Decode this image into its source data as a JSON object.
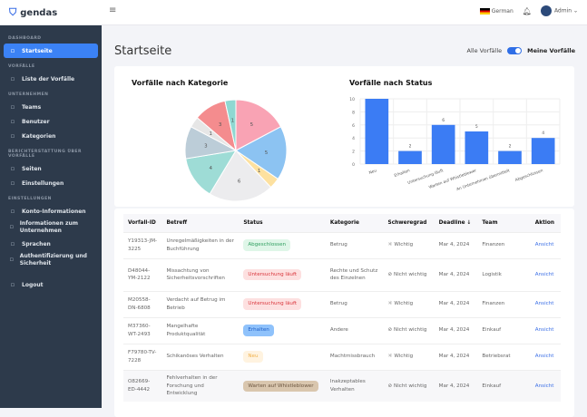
{
  "app": {
    "name": "gendas"
  },
  "header": {
    "language": "German",
    "user": "Admin"
  },
  "sidebar": {
    "sections": [
      {
        "title": "DASHBOARD",
        "items": [
          {
            "label": "Startseite",
            "icon": "home-icon",
            "active": true
          }
        ]
      },
      {
        "title": "VORFÄLLE",
        "items": [
          {
            "label": "Liste der Vorfälle",
            "icon": "flag-icon"
          }
        ]
      },
      {
        "title": "UNTERNEHMEN",
        "items": [
          {
            "label": "Teams",
            "icon": "users-icon"
          },
          {
            "label": "Benutzer",
            "icon": "user-icon"
          },
          {
            "label": "Kategorien",
            "icon": "grid-icon"
          }
        ]
      },
      {
        "title": "BERICHTERSTATTUNG ÜBER VORFÄLLE",
        "items": [
          {
            "label": "Seiten",
            "icon": "page-icon"
          },
          {
            "label": "Einstellungen",
            "icon": "sliders-icon"
          }
        ]
      },
      {
        "title": "EINSTELLUNGEN",
        "items": [
          {
            "label": "Konto-Informationen",
            "icon": "account-icon"
          },
          {
            "label": "Informationen zum Unternehmen",
            "icon": "building-icon"
          },
          {
            "label": "Sprachen",
            "icon": "translate-icon"
          },
          {
            "label": "Authentifizierung und Sicherheit",
            "icon": "lock-icon"
          }
        ]
      },
      {
        "title": "",
        "items": [
          {
            "label": "Logout",
            "icon": "logout-icon"
          }
        ]
      }
    ]
  },
  "page": {
    "title": "Startseite",
    "toggle_left": "Alle Vorfälle",
    "toggle_right": "Meine Vorfälle",
    "toggle_on": true
  },
  "chart_data": [
    {
      "type": "pie",
      "title": "Vorfälle nach Kategorie",
      "values": [
        5,
        5,
        1,
        6,
        4,
        3,
        1,
        3,
        1
      ],
      "colors": [
        "#f9a3b4",
        "#8cc3f2",
        "#fde1a0",
        "#ececee",
        "#9edcd6",
        "#bccdd8",
        "#e6e6e6",
        "#f48c8e",
        "#8fd8d2"
      ]
    },
    {
      "type": "bar",
      "title": "Vorfälle nach Status",
      "categories": [
        "Neu",
        "Erhalten",
        "Untersuchung läuft",
        "Warten auf Whistleblower",
        "An Unternehmen übermittelt",
        "Abgeschlossen"
      ],
      "values": [
        10,
        2,
        6,
        5,
        2,
        4
      ],
      "ylim": [
        0,
        10
      ],
      "yticks": [
        0,
        2,
        4,
        6,
        8,
        10
      ],
      "color": "#3b7cf4"
    }
  ],
  "table": {
    "headers": [
      "Vorfall-ID",
      "Betreff",
      "Status",
      "Kategorie",
      "Schweregrad",
      "Deadline ↓",
      "Team",
      "Aktion"
    ],
    "rows": [
      {
        "id": "Y19313-JM-3225",
        "subject": "Unregelmäßigkeiten in der Buchführung",
        "status": "Abgeschlossen",
        "sc": "green",
        "category": "Betrug",
        "severity": "Wichtig",
        "deadline": "Mar 4, 2024",
        "team": "Finanzen",
        "action": "Ansicht"
      },
      {
        "id": "D48044-YM-2122",
        "subject": "Missachtung von Sicherheitsvorschriften",
        "status": "Untersuchung läuft",
        "sc": "red",
        "category": "Rechte und Schutz des Einzelnen",
        "severity": "Nicht wichtig",
        "deadline": "Mar 4, 2024",
        "team": "Logistik",
        "action": "Ansicht"
      },
      {
        "id": "M20558-DN-6808",
        "subject": "Verdacht auf Betrug im Betrieb",
        "status": "Untersuchung läuft",
        "sc": "red",
        "category": "Betrug",
        "severity": "Wichtig",
        "deadline": "Mar 4, 2024",
        "team": "Finanzen",
        "action": "Ansicht"
      },
      {
        "id": "M37360-WT-2493",
        "subject": "Mangelhafte Produktqualität",
        "status": "Erhalten",
        "sc": "blue",
        "category": "Andere",
        "severity": "Nicht wichtig",
        "deadline": "Mar 4, 2024",
        "team": "Einkauf",
        "action": "Ansicht"
      },
      {
        "id": "F79780-TV-7228",
        "subject": "Schikanöses Verhalten",
        "status": "Neu",
        "sc": "yellow",
        "category": "Machtmissbrauch",
        "severity": "Wichtig",
        "deadline": "Mar 4, 2024",
        "team": "Betriebsrat",
        "action": "Ansicht"
      },
      {
        "id": "O82669-ED-4442",
        "subject": "Fehlverhalten in der Forschung und Entwicklung",
        "status": "Warten auf Whistleblower",
        "sc": "brown",
        "category": "Inakzeptables Verhalten",
        "severity": "Nicht wichtig",
        "deadline": "Mar 4, 2024",
        "team": "Einkauf",
        "action": "Ansicht"
      }
    ]
  }
}
